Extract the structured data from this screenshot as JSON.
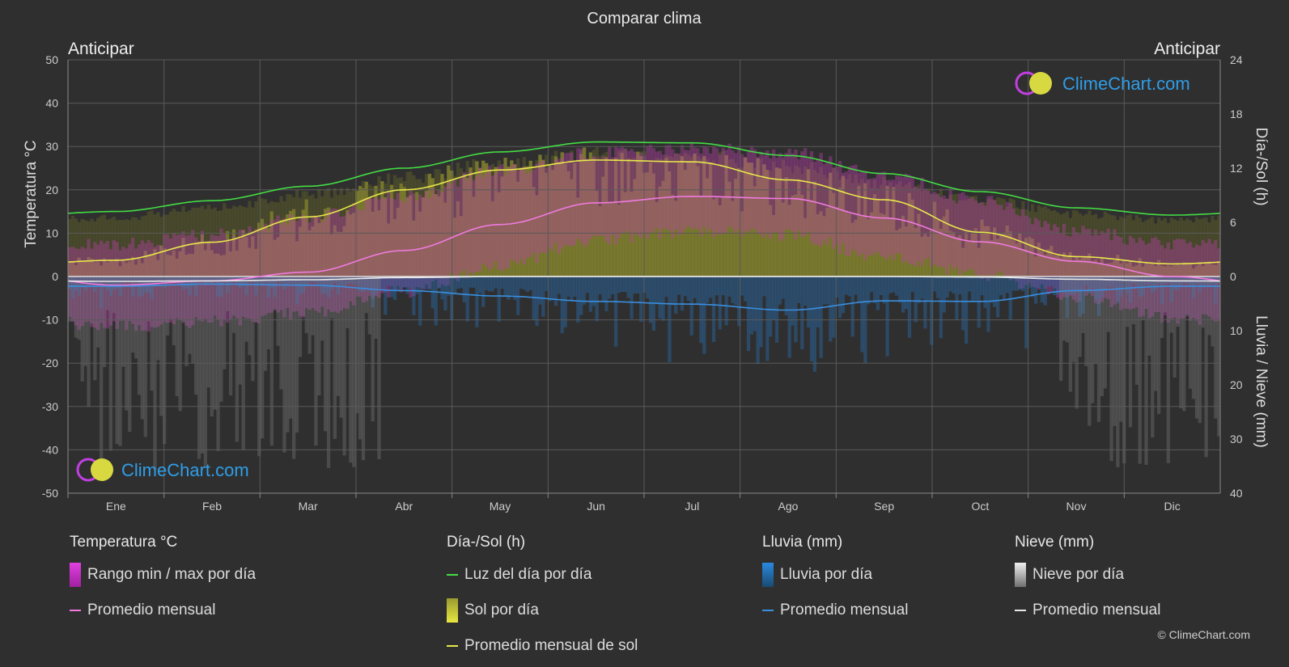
{
  "title": "Comparar clima",
  "location_left": "Anticipar",
  "location_right": "Anticipar",
  "watermark": "ClimeChart.com",
  "copyright": "© ClimeChart.com",
  "colors": {
    "background": "#2f2f2f",
    "daylight": "#44dd44",
    "sunshine_avg": "#e8e84a",
    "temp_avg": "#f07ae0",
    "rain_avg": "#3a8fe0",
    "snow_avg": "#e8e8e8",
    "watermark_text": "#2f9ee8"
  },
  "legend": {
    "temperature": {
      "heading": "Temperatura °C",
      "range": "Rango min / max por día",
      "avg": "Promedio mensual"
    },
    "sun": {
      "heading": "Día-/Sol (h)",
      "daylight": "Luz del día por día",
      "sunshine": "Sol por día",
      "sunshine_avg": "Promedio mensual de sol"
    },
    "rain": {
      "heading": "Lluvia (mm)",
      "per_day": "Lluvia por día",
      "avg": "Promedio mensual"
    },
    "snow": {
      "heading": "Nieve (mm)",
      "per_day": "Nieve por día",
      "avg": "Promedio mensual"
    }
  },
  "chart_data": {
    "type": "line",
    "title": "Comparar clima",
    "categories": [
      "Ene",
      "Feb",
      "Mar",
      "Abr",
      "May",
      "Jun",
      "Jul",
      "Ago",
      "Sep",
      "Oct",
      "Nov",
      "Dic"
    ],
    "y_left": {
      "label": "Temperatura °C",
      "ticks": [
        50,
        40,
        30,
        20,
        10,
        0,
        -10,
        -20,
        -30,
        -40,
        -50
      ],
      "range": [
        -50,
        50
      ]
    },
    "y_right_top": {
      "label": "Día-/Sol (h)",
      "ticks": [
        24,
        18,
        12,
        6,
        0
      ],
      "range": [
        0,
        24
      ]
    },
    "y_right_bottom": {
      "label": "Lluvia / Nieve (mm)",
      "ticks": [
        0,
        10,
        20,
        30,
        40
      ],
      "range": [
        0,
        40
      ]
    },
    "grid": true,
    "series": [
      {
        "name": "Luz del día por día",
        "axis": "sun_h",
        "values": [
          7.2,
          8.4,
          10.0,
          12.0,
          13.8,
          14.9,
          14.8,
          13.4,
          11.4,
          9.4,
          7.6,
          6.8
        ]
      },
      {
        "name": "Promedio mensual de sol",
        "axis": "sun_h",
        "values": [
          1.8,
          3.8,
          6.6,
          9.6,
          11.8,
          12.9,
          12.7,
          10.7,
          8.5,
          4.9,
          2.2,
          1.4
        ]
      },
      {
        "name": "Promedio mensual",
        "axis": "temp_c",
        "values": [
          -2.0,
          -1.0,
          1.0,
          6.0,
          12.0,
          17.0,
          18.5,
          18.0,
          13.5,
          8.0,
          3.5,
          0.0
        ]
      },
      {
        "name": "Promedio mensual",
        "axis": "rain_mm",
        "values": [
          1.8,
          1.4,
          1.6,
          2.6,
          3.6,
          4.6,
          5.1,
          6.2,
          4.5,
          4.6,
          2.6,
          1.8
        ]
      },
      {
        "name": "Promedio mensual",
        "axis": "snow_mm",
        "values": [
          0.9,
          0.8,
          0.6,
          0.2,
          0.0,
          0.0,
          0.0,
          0.0,
          0.0,
          0.1,
          0.5,
          0.8
        ]
      }
    ],
    "temp_range_typical": {
      "min": [
        -10,
        -9,
        -7,
        -2,
        4,
        10,
        12,
        11,
        6,
        2,
        -3,
        -8
      ],
      "max": [
        6,
        8,
        12,
        17,
        23,
        27,
        28,
        27,
        22,
        16,
        9,
        6
      ]
    }
  }
}
